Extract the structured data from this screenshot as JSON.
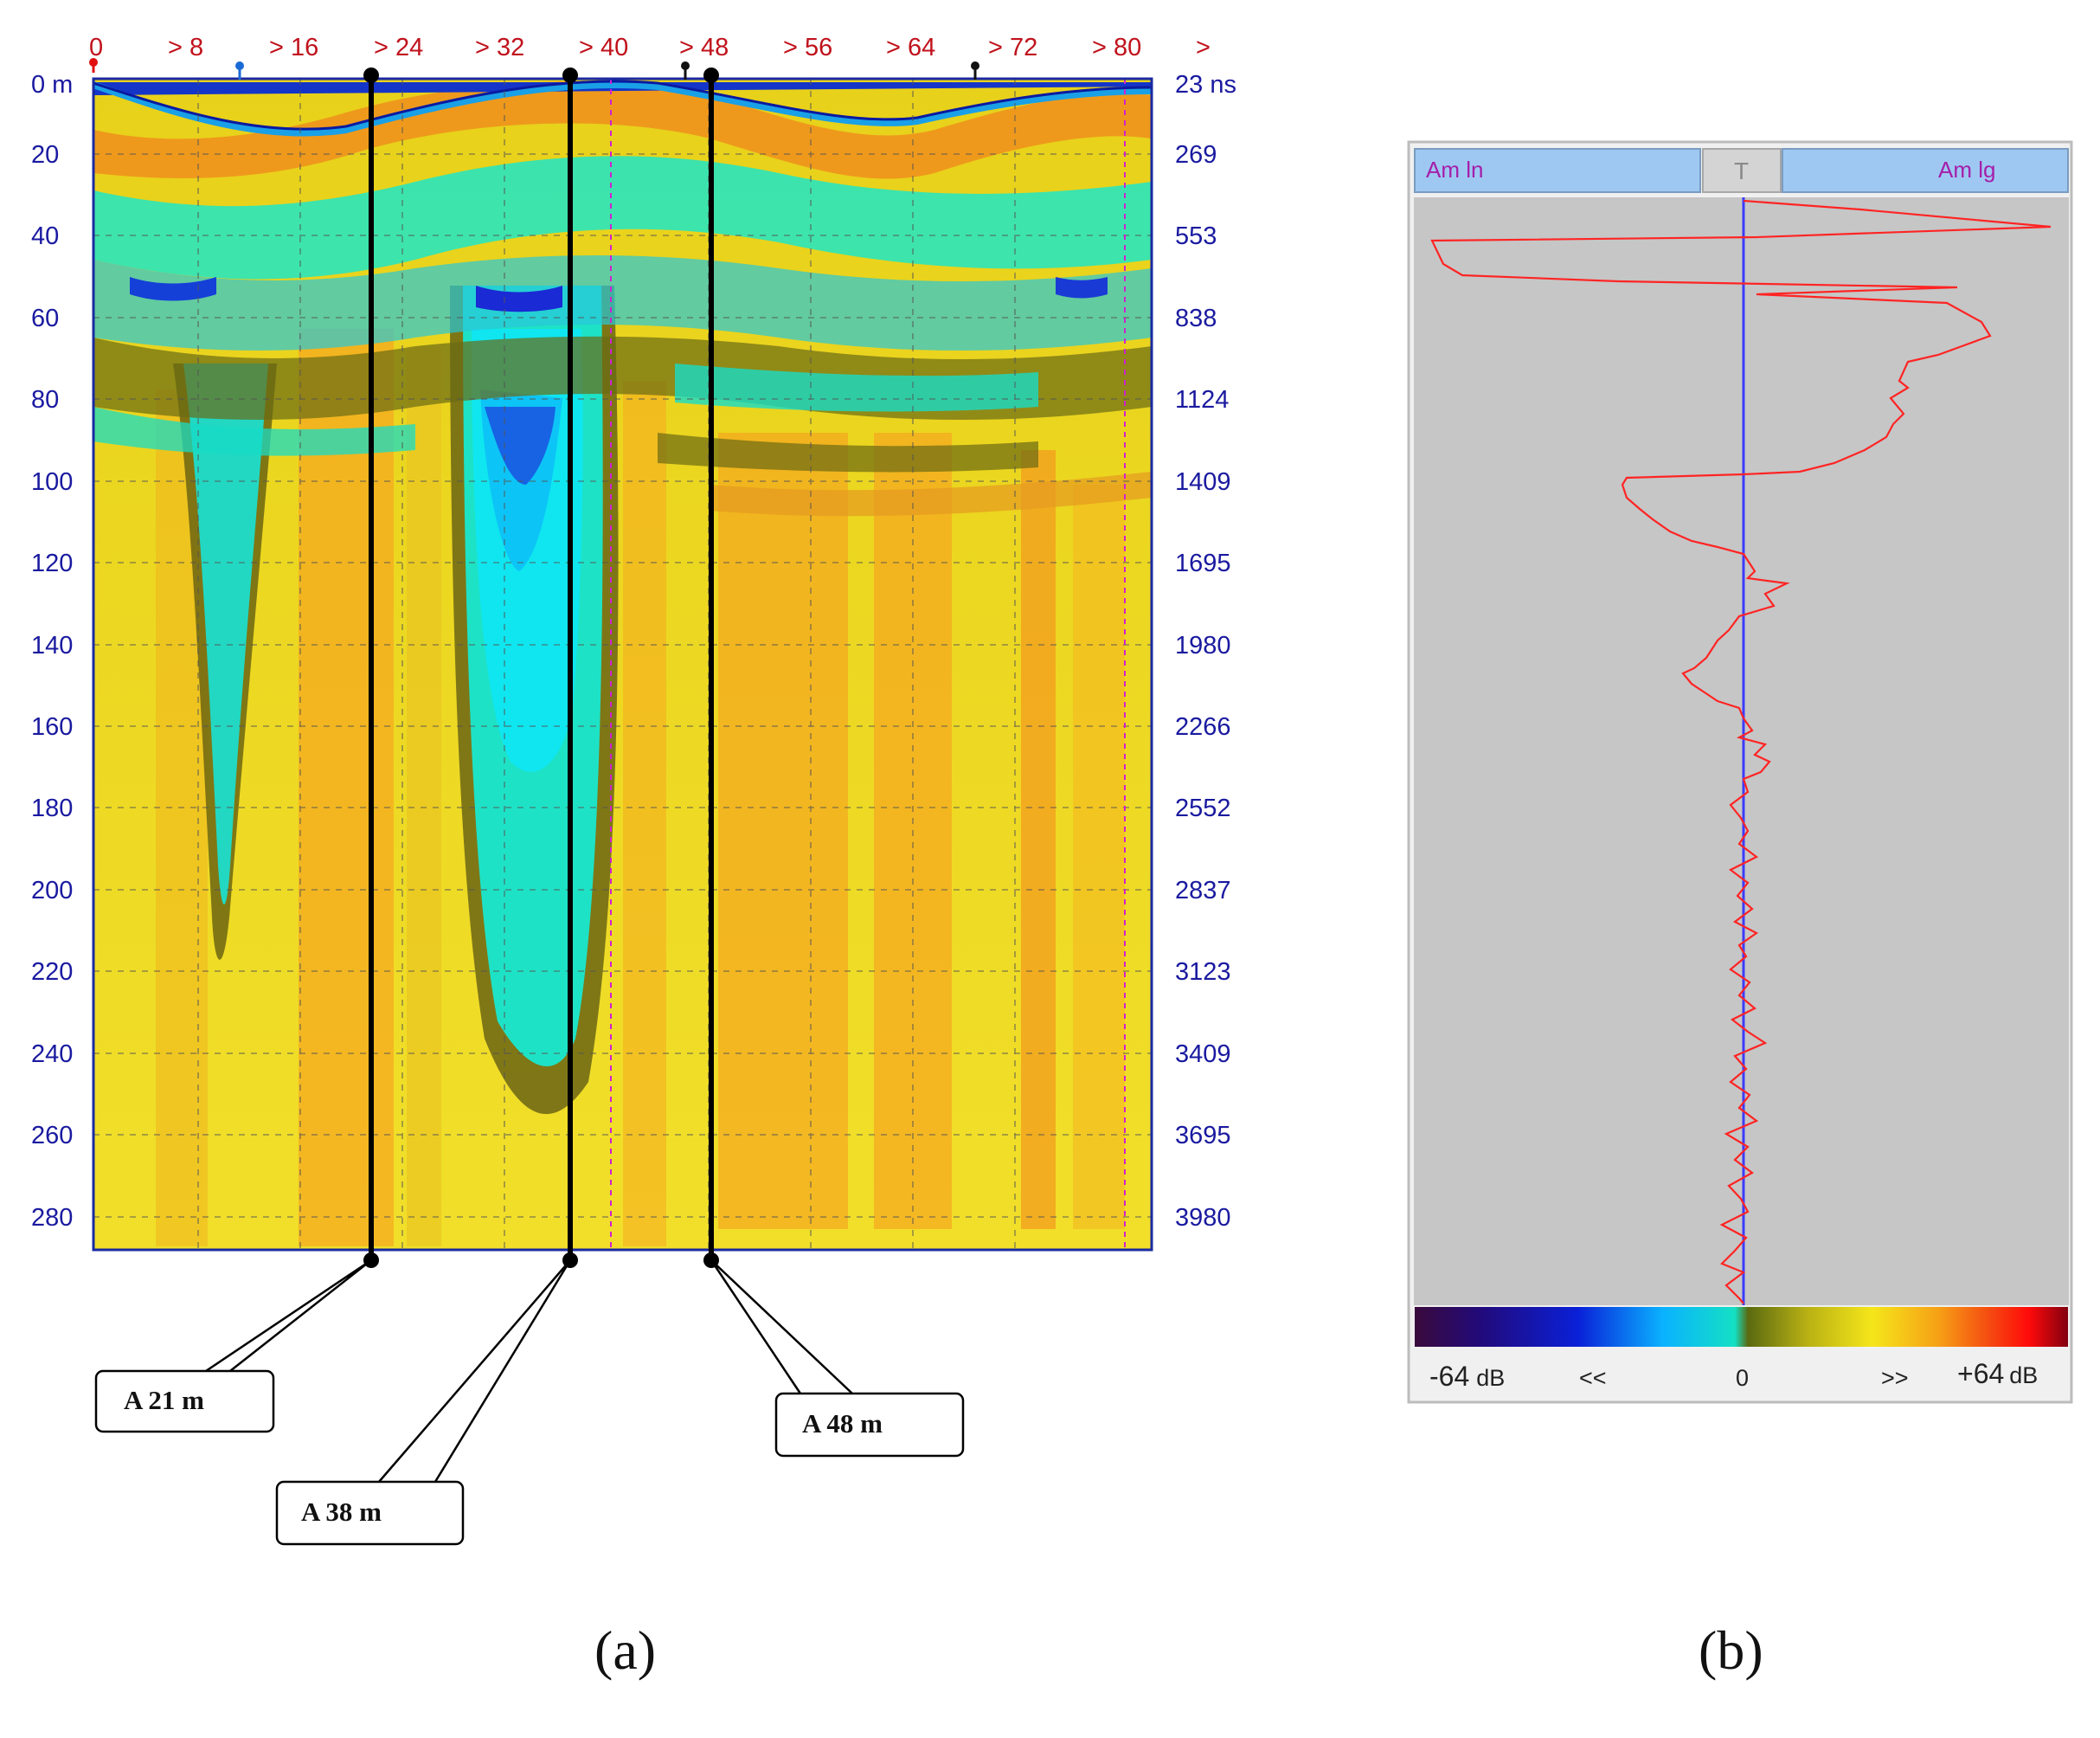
{
  "panel_a": {
    "top_axis_labels": [
      "0",
      "> 8",
      "> 16",
      "> 24",
      "> 32",
      "> 40",
      "> 48",
      "> 56",
      "> 64",
      "> 72",
      "> 80",
      ">"
    ],
    "left_axis_labels": [
      "0 m",
      "20",
      "40",
      "60",
      "80",
      "100",
      "120",
      "140",
      "160",
      "180",
      "200",
      "220",
      "240",
      "260",
      "280"
    ],
    "right_axis_labels": [
      "23 ns",
      "269",
      "553",
      "838",
      "1124",
      "1409",
      "1695",
      "1980",
      "2266",
      "2552",
      "2837",
      "3123",
      "3409",
      "3695",
      "3980"
    ],
    "callouts": [
      {
        "label": "A 21 m"
      },
      {
        "label": "A 38 m"
      },
      {
        "label": "A 48 m"
      }
    ],
    "caption": "(a)"
  },
  "panel_b": {
    "header_left": "Am ln",
    "header_button": "T",
    "header_right": "Am lg",
    "scale_min_value": "-64",
    "scale_min_unit": "dB",
    "scale_left_arrow": "<<",
    "scale_zero": "0",
    "scale_right_arrow": ">>",
    "scale_max_value": "+64",
    "scale_max_unit": "dB",
    "caption": "(b)"
  },
  "colors": {
    "background_soil": "#f2dc16",
    "low_amplitude": "#19dcc8",
    "high_amplitude": "#f5a116",
    "trace_line": "#ff2020",
    "zero_line": "#3c3cff",
    "axis_blue": "#1a1aa0",
    "axis_red": "#c0121c",
    "panel_gray": "#c8c8c8"
  }
}
